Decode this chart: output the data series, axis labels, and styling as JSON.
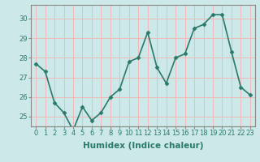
{
  "x": [
    0,
    1,
    2,
    3,
    4,
    5,
    6,
    7,
    8,
    9,
    10,
    11,
    12,
    13,
    14,
    15,
    16,
    17,
    18,
    19,
    20,
    21,
    22,
    23
  ],
  "y": [
    27.7,
    27.3,
    25.7,
    25.2,
    24.3,
    25.5,
    24.8,
    25.2,
    26.0,
    26.4,
    27.8,
    28.0,
    29.3,
    27.5,
    26.7,
    28.0,
    28.2,
    29.5,
    29.7,
    30.2,
    30.2,
    28.3,
    26.5,
    26.1
  ],
  "line_color": "#2a7a6a",
  "marker": "D",
  "marker_size": 2.5,
  "bg_color": "#cce8e8",
  "grid_color": "#f0b8b8",
  "xlabel": "Humidex (Indice chaleur)",
  "ylim": [
    24.5,
    30.7
  ],
  "xlim": [
    -0.5,
    23.5
  ],
  "yticks": [
    25,
    26,
    27,
    28,
    29,
    30
  ],
  "xticks": [
    0,
    1,
    2,
    3,
    4,
    5,
    6,
    7,
    8,
    9,
    10,
    11,
    12,
    13,
    14,
    15,
    16,
    17,
    18,
    19,
    20,
    21,
    22,
    23
  ],
  "tick_fontsize": 6.0,
  "xlabel_fontsize": 7.5,
  "line_width": 1.2,
  "spine_color": "#888888",
  "tick_color": "#2a7a6a"
}
